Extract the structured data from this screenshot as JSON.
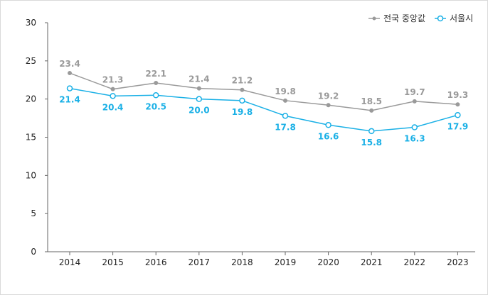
{
  "chart_data": {
    "type": "line",
    "title": "",
    "xlabel": "",
    "ylabel": "",
    "categories": [
      "2014",
      "2015",
      "2016",
      "2017",
      "2018",
      "2019",
      "2020",
      "2021",
      "2022",
      "2023"
    ],
    "ylim": [
      0,
      30
    ],
    "yticks": [
      0,
      5,
      10,
      15,
      20,
      25,
      30
    ],
    "grid": false,
    "legend_position": "top-right",
    "series": [
      {
        "name": "전국 중앙값",
        "color": "#9a9a9a",
        "marker": "filled-circle",
        "values": [
          23.4,
          21.3,
          22.1,
          21.4,
          21.2,
          19.8,
          19.2,
          18.5,
          19.7,
          19.3
        ],
        "labels": [
          "23.4",
          "21.3",
          "22.1",
          "21.4",
          "21.2",
          "19.8",
          "19.2",
          "18.5",
          "19.7",
          "19.3"
        ]
      },
      {
        "name": "서울시",
        "color": "#1ab0e6",
        "marker": "hollow-circle",
        "values": [
          21.4,
          20.4,
          20.5,
          20.0,
          19.8,
          17.8,
          16.6,
          15.8,
          16.3,
          17.9
        ],
        "labels": [
          "21.4",
          "20.4",
          "20.5",
          "20.0",
          "19.8",
          "17.8",
          "16.6",
          "15.8",
          "16.3",
          "17.9"
        ]
      }
    ]
  }
}
